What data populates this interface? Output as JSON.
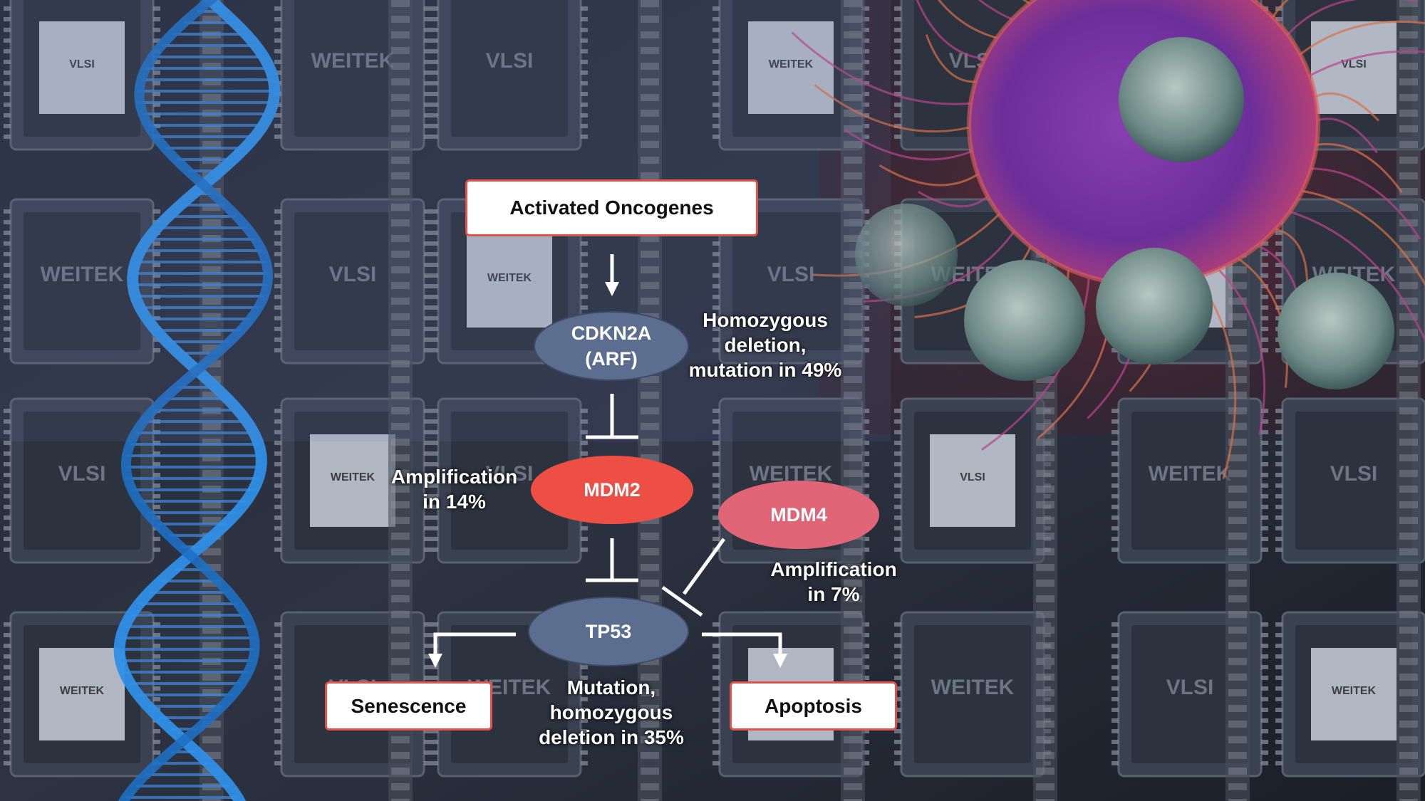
{
  "nodes": {
    "activated_oncogenes": "Activated Oncogenes",
    "cdkn2a": [
      "CDKN2A",
      "(ARF)"
    ],
    "mdm2": "MDM2",
    "mdm4": "MDM4",
    "tp53": "TP53",
    "senescence": "Senescence",
    "apoptosis": "Apoptosis"
  },
  "annotations": {
    "cdkn2a": [
      "Homozygous",
      "deletion,",
      "mutation in 49%"
    ],
    "mdm2": [
      "Amplification",
      "in 14%"
    ],
    "mdm4": [
      "Amplification",
      "in 7%"
    ],
    "tp53": [
      "Mutation,",
      "homozygous",
      "deletion in 35%"
    ]
  },
  "background_chip_labels": [
    "VLSI",
    "WEITEK"
  ],
  "colors": {
    "box_border": "#e0524a",
    "cdkn2a_fill": "#5b6e8f",
    "mdm2_fill": "#ee4f44",
    "mdm4_fill": "#e06677",
    "tp53_fill": "#5b6e8f",
    "connector": "#ffffff"
  }
}
